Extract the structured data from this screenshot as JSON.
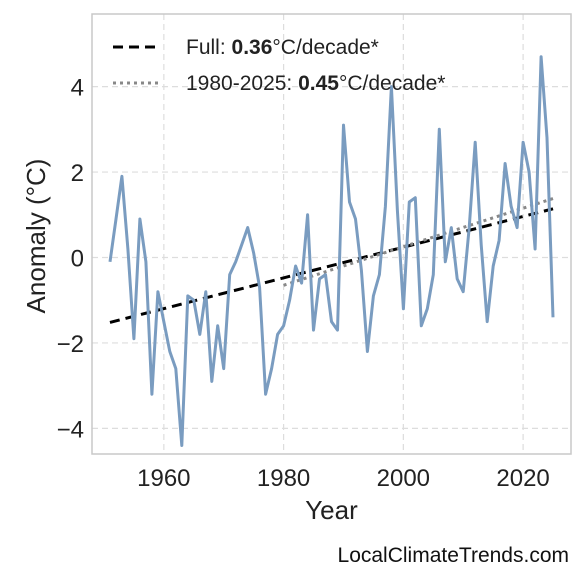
{
  "chart_data": {
    "type": "line",
    "xlabel": "Year",
    "ylabel": "Anomaly (°C)",
    "xlim": [
      1948,
      2028
    ],
    "ylim": [
      -4.6,
      5.7
    ],
    "xticks": [
      1960,
      1980,
      2000,
      2020
    ],
    "yticks": [
      -4,
      -2,
      0,
      2,
      4
    ],
    "ytick_labels": [
      "−4",
      "−2",
      "0",
      "2",
      "4"
    ],
    "grid": true,
    "legend_position": "top-left",
    "series": [
      {
        "color": "#7a9cc0",
        "x": [
          1951,
          1952,
          1953,
          1954,
          1955,
          1956,
          1957,
          1958,
          1959,
          1960,
          1961,
          1962,
          1963,
          1964,
          1965,
          1966,
          1967,
          1968,
          1969,
          1970,
          1971,
          1972,
          1973,
          1974,
          1975,
          1976,
          1977,
          1978,
          1979,
          1980,
          1981,
          1982,
          1983,
          1984,
          1985,
          1986,
          1987,
          1988,
          1989,
          1990,
          1991,
          1992,
          1993,
          1994,
          1995,
          1996,
          1997,
          1998,
          1999,
          2000,
          2001,
          2002,
          2003,
          2004,
          2005,
          2006,
          2007,
          2008,
          2009,
          2010,
          2011,
          2012,
          2013,
          2014,
          2015,
          2016,
          2017,
          2018,
          2019,
          2020,
          2021,
          2022,
          2023,
          2024,
          2025
        ],
        "values": [
          -0.1,
          0.9,
          1.9,
          0.2,
          -1.9,
          0.9,
          -0.1,
          -3.2,
          -0.8,
          -1.5,
          -2.2,
          -2.6,
          -4.4,
          -0.9,
          -1.0,
          -1.8,
          -0.8,
          -2.9,
          -1.6,
          -2.6,
          -0.4,
          -0.1,
          0.3,
          0.7,
          0.1,
          -0.7,
          -3.2,
          -2.6,
          -1.8,
          -1.6,
          -1.0,
          -0.2,
          -0.6,
          1.0,
          -1.7,
          -0.5,
          -0.4,
          -1.5,
          -1.7,
          3.1,
          1.3,
          0.9,
          -0.3,
          -2.2,
          -0.9,
          -0.4,
          1.2,
          4.0,
          1.1,
          -1.2,
          1.3,
          1.4,
          -1.6,
          -1.2,
          -0.4,
          3.0,
          -0.1,
          0.7,
          -0.5,
          -0.8,
          0.7,
          2.7,
          0.3,
          -1.5,
          -0.2,
          0.4,
          2.2,
          1.2,
          0.7,
          2.7,
          2.0,
          0.2,
          4.7,
          2.8,
          -1.4
        ]
      }
    ],
    "trend_lines": [
      {
        "label_prefix": "Full: ",
        "value": "0.36",
        "label_suffix": "°C/decade*",
        "style": "dashed",
        "color": "#000000",
        "x": [
          1951,
          2025
        ],
        "y": [
          -1.52,
          1.14
        ]
      },
      {
        "label_prefix": "1980-2025: ",
        "value": "0.45",
        "label_suffix": "°C/decade*",
        "style": "dotted",
        "color": "#888888",
        "x": [
          1980,
          2025
        ],
        "y": [
          -0.65,
          1.38
        ]
      }
    ]
  },
  "watermark": "LocalClimateTrends.com"
}
